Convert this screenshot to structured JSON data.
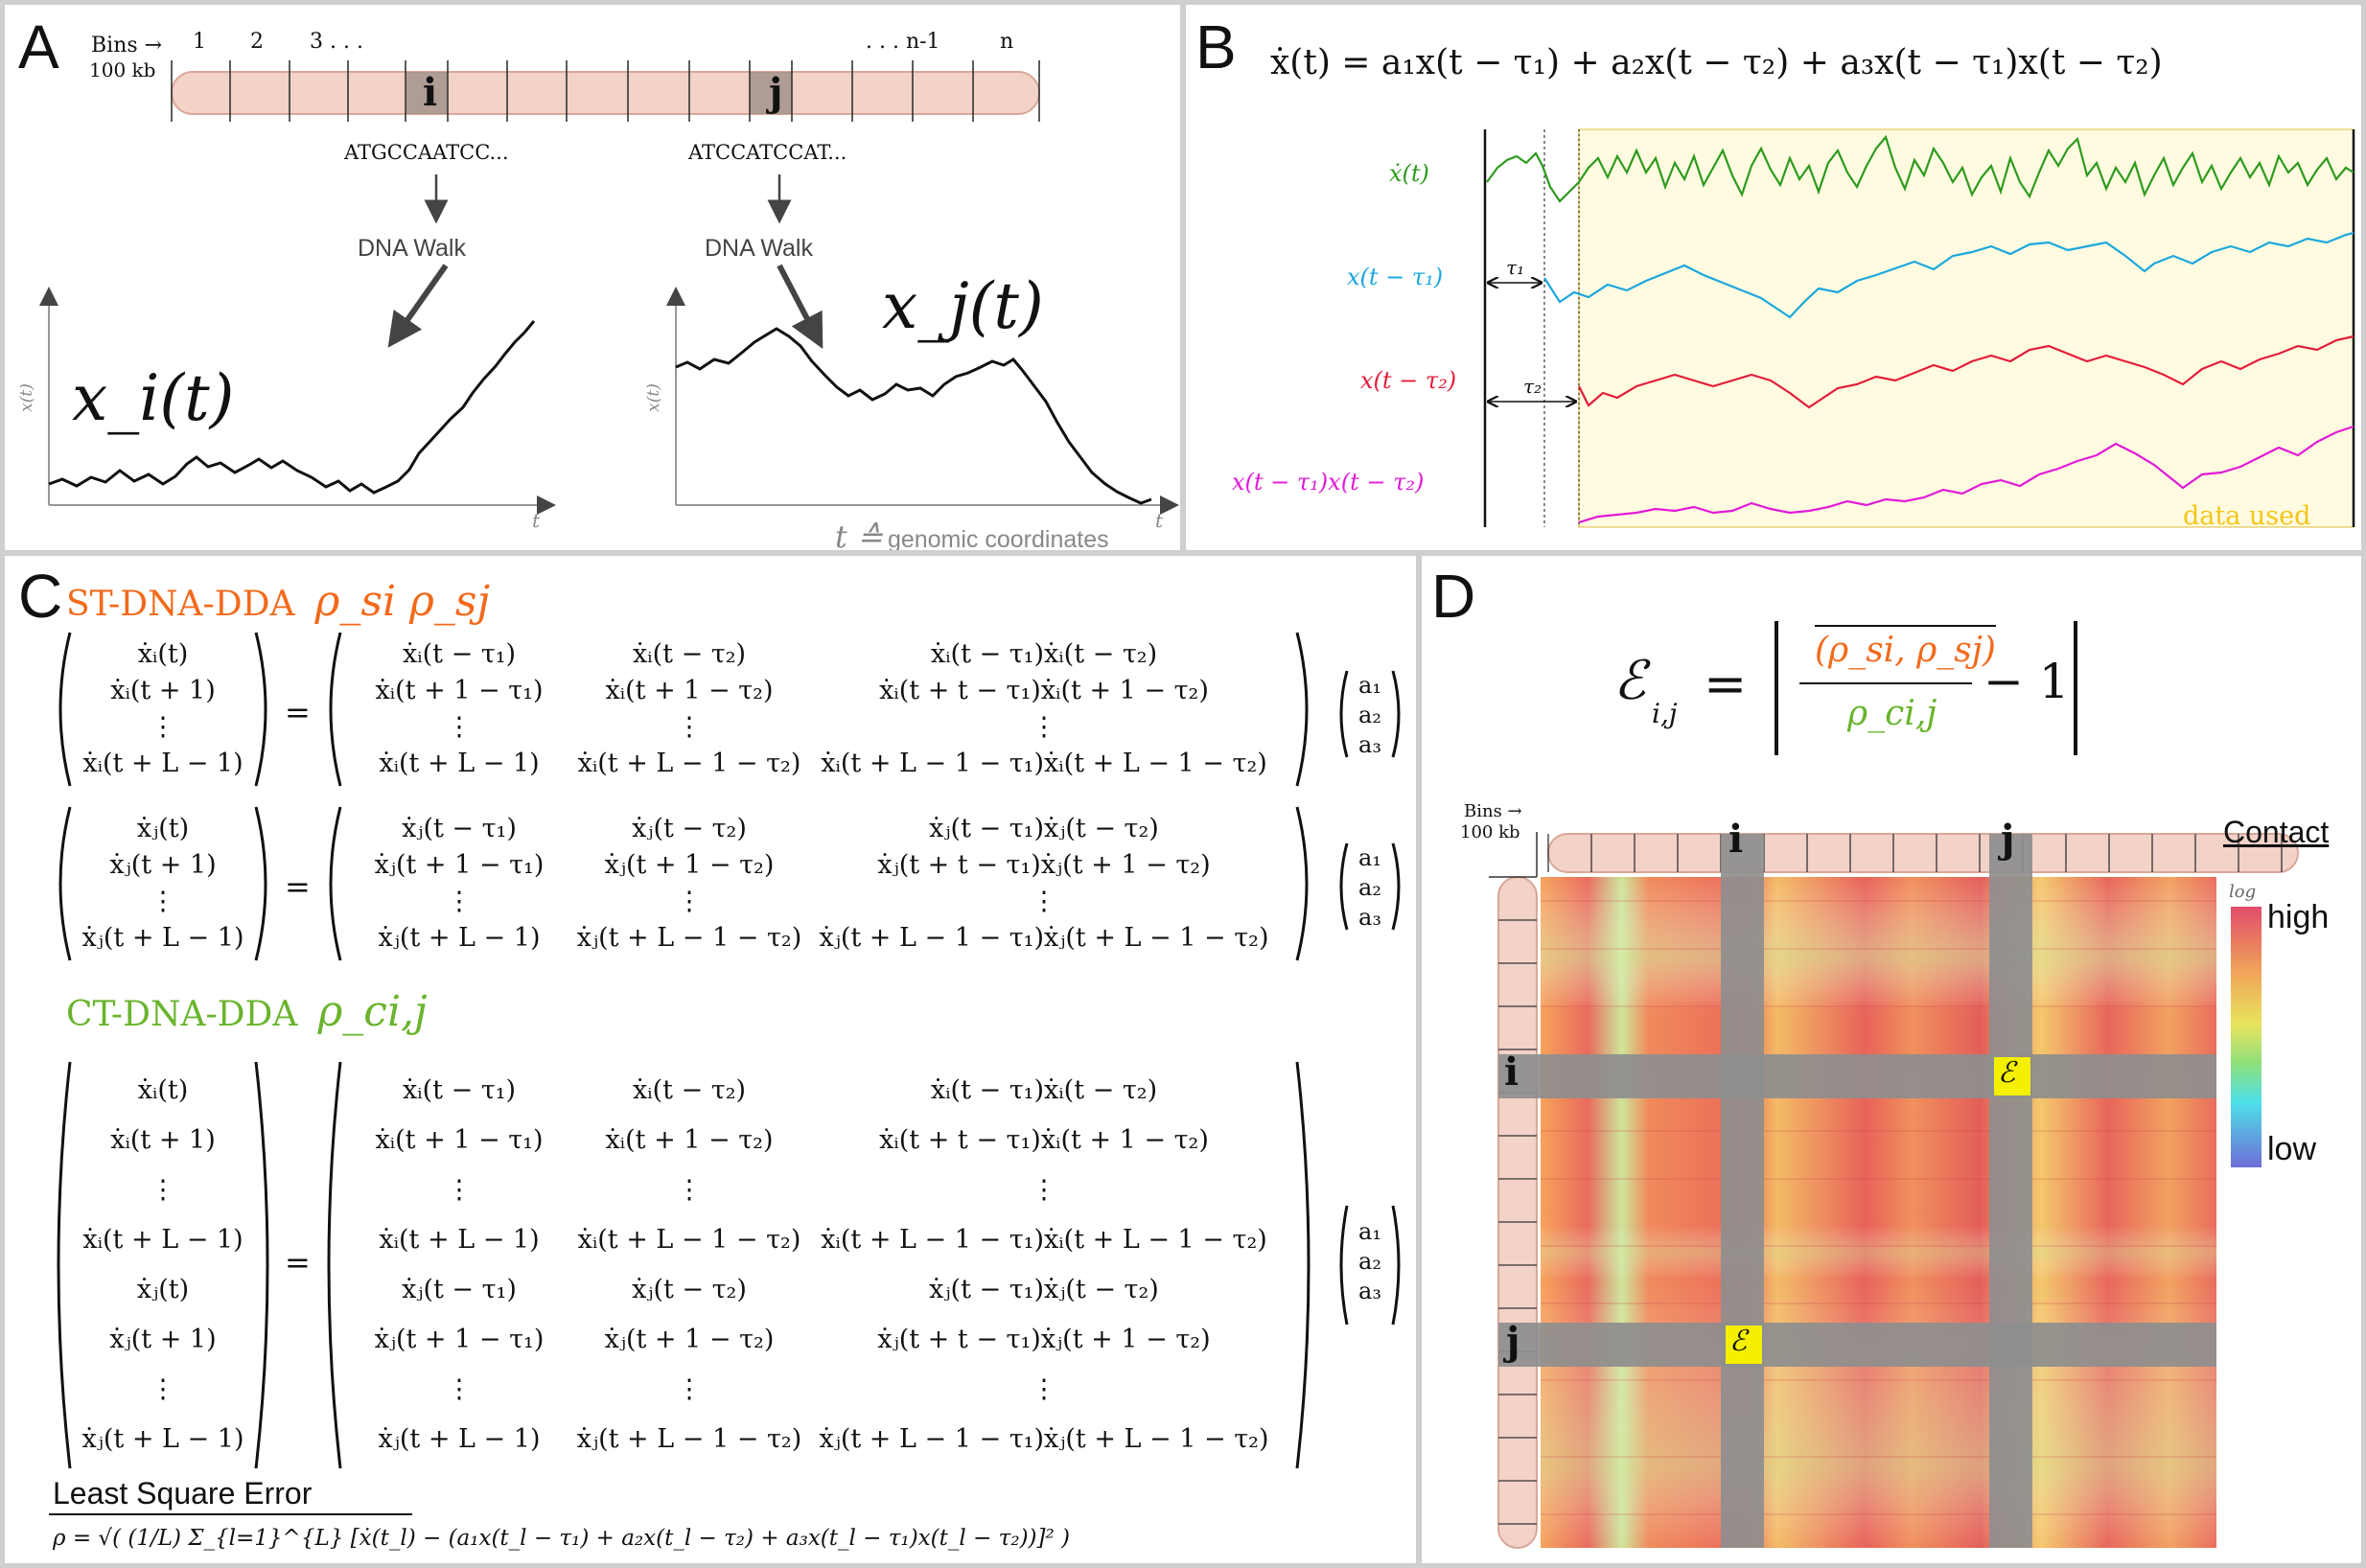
{
  "panels": {
    "a": {
      "label": "A",
      "bins_label": "Bins",
      "bins_unit": "100 kb",
      "bin_ticks": [
        "1",
        "2",
        "3 . . .",
        ". . . n-1",
        "n"
      ],
      "bin_i": "i",
      "bin_j": "j",
      "seq_i": "ATGCCAATCC...",
      "seq_j": "ATCCATCCAT...",
      "walk_label": "DNA Walk",
      "walk_i_label": "x_i(t)",
      "walk_j_label": "x_j(t)",
      "axis_y": "x(t)",
      "axis_x": "t",
      "footnote_symbol": "t ≙",
      "footnote_text": "genomic coordinates"
    },
    "b": {
      "label": "B",
      "equation": "ẋ(t) = a₁x(t − τ₁) + a₂x(t − τ₂) + a₃x(t − τ₁)x(t − τ₂)",
      "series": [
        {
          "name": "ẋ(t)",
          "color": "#2e9a1f"
        },
        {
          "name": "x(t − τ₁)",
          "color": "#1aa7de"
        },
        {
          "name": "x(t − τ₂)",
          "color": "#e31d3a"
        },
        {
          "name": "x(t − τ₁)x(t − τ₂)",
          "color": "#e21ad8"
        }
      ],
      "tau1": "τ₁",
      "tau2": "τ₂",
      "data_used": "data used",
      "highlight_color": "#fffbe0"
    },
    "c": {
      "label": "C",
      "st_title": "ST-DNA-DDA",
      "st_symbols": "ρ_si  ρ_sj",
      "ct_title": "CT-DNA-DDA",
      "ct_symbols": "ρ_ci,j",
      "lse_title": "Least Square Error",
      "lse_formula": "ρ = √( (1/L) Σ_{l=1}^{L} [ẋ(t_l) − (a₁x(t_l − τ₁) + a₂x(t_l − τ₂) + a₃x(t_l − τ₁)x(t_l − τ₂))]² )",
      "orange": "#f26a1b",
      "green": "#6ab42d",
      "eq_i": {
        "lhs": [
          "ẋᵢ(t)",
          "ẋᵢ(t + 1)",
          "⋮",
          "ẋᵢ(t + L − 1)"
        ],
        "rhs": [
          [
            "ẋᵢ(t − τ₁)",
            "ẋᵢ(t − τ₂)",
            "ẋᵢ(t − τ₁)ẋᵢ(t − τ₂)"
          ],
          [
            "ẋᵢ(t + 1 − τ₁)",
            "ẋᵢ(t + 1 − τ₂)",
            "ẋᵢ(t + t − τ₁)ẋᵢ(t + 1 − τ₂)"
          ],
          [
            "⋮",
            "⋮",
            "⋮"
          ],
          [
            "ẋᵢ(t + L − 1)",
            "ẋᵢ(t + L − 1 − τ₂)",
            "ẋᵢ(t + L − 1 − τ₁)ẋᵢ(t + L − 1 − τ₂)"
          ]
        ],
        "coef": [
          "a₁",
          "a₂",
          "a₃"
        ]
      },
      "eq_j": {
        "lhs": [
          "ẋⱼ(t)",
          "ẋⱼ(t + 1)",
          "⋮",
          "ẋⱼ(t + L − 1)"
        ],
        "rhs": [
          [
            "ẋⱼ(t − τ₁)",
            "ẋⱼ(t − τ₂)",
            "ẋⱼ(t − τ₁)ẋⱼ(t − τ₂)"
          ],
          [
            "ẋⱼ(t + 1 − τ₁)",
            "ẋⱼ(t + 1 − τ₂)",
            "ẋⱼ(t + t − τ₁)ẋⱼ(t + 1 − τ₂)"
          ],
          [
            "⋮",
            "⋮",
            "⋮"
          ],
          [
            "ẋⱼ(t + L − 1)",
            "ẋⱼ(t + L − 1 − τ₂)",
            "ẋⱼ(t + L − 1 − τ₁)ẋⱼ(t + L − 1 − τ₂)"
          ]
        ],
        "coef": [
          "a₁",
          "a₂",
          "a₃"
        ]
      },
      "eq_ct": {
        "lhs": [
          "ẋᵢ(t)",
          "ẋᵢ(t + 1)",
          "⋮",
          "ẋᵢ(t + L − 1)",
          "ẋⱼ(t)",
          "ẋⱼ(t + 1)",
          "⋮",
          "ẋⱼ(t + L − 1)"
        ],
        "rhs": [
          [
            "ẋᵢ(t − τ₁)",
            "ẋᵢ(t − τ₂)",
            "ẋᵢ(t − τ₁)ẋᵢ(t − τ₂)"
          ],
          [
            "ẋᵢ(t + 1 − τ₁)",
            "ẋᵢ(t + 1 − τ₂)",
            "ẋᵢ(t + t − τ₁)ẋᵢ(t + 1 − τ₂)"
          ],
          [
            "⋮",
            "⋮",
            "⋮"
          ],
          [
            "ẋᵢ(t + L − 1)",
            "ẋᵢ(t + L − 1 − τ₂)",
            "ẋᵢ(t + L − 1 − τ₁)ẋᵢ(t + L − 1 − τ₂)"
          ],
          [
            "ẋⱼ(t − τ₁)",
            "ẋⱼ(t − τ₂)",
            "ẋⱼ(t − τ₁)ẋⱼ(t − τ₂)"
          ],
          [
            "ẋⱼ(t + 1 − τ₁)",
            "ẋⱼ(t + 1 − τ₂)",
            "ẋⱼ(t + t − τ₁)ẋⱼ(t + 1 − τ₂)"
          ],
          [
            "⋮",
            "⋮",
            "⋮"
          ],
          [
            "ẋⱼ(t + L − 1)",
            "ẋⱼ(t + L − 1 − τ₂)",
            "ẋⱼ(t + L − 1 − τ₁)ẋⱼ(t + L − 1 − τ₂)"
          ]
        ],
        "coef": [
          "a₁",
          "a₂",
          "a₃"
        ]
      }
    },
    "d": {
      "label": "D",
      "formula_left": "ℰ",
      "formula_sub": "i,j",
      "formula_eq": "=",
      "formula_num": "(ρ_si, ρ_sj)",
      "formula_den": "ρ_ci,j",
      "formula_minus": "− 1",
      "bins_label": "Bins →",
      "bins_unit": "100 kb",
      "bin_i": "i",
      "bin_j": "j",
      "contact_title": "Contact",
      "scale_note": "log",
      "scale_high": "high",
      "scale_low": "low",
      "cell_symbol": "ℰ"
    }
  }
}
